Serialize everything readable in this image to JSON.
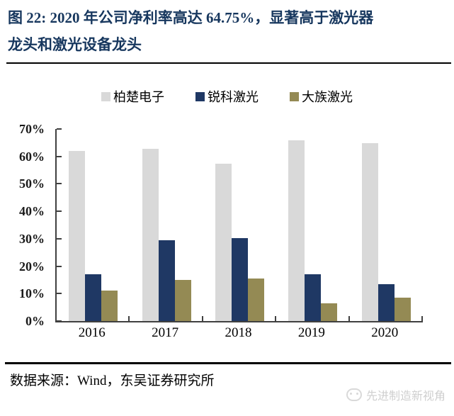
{
  "figure": {
    "title_line1": "图 22: 2020 年公司净利率高达 64.75%，显著高于激光器",
    "title_line2": "龙头和激光设备龙头",
    "title_color": "#17375E",
    "source": "数据来源：Wind，东吴证券研究所",
    "watermark_text": "先进制造新视角"
  },
  "chart_data": {
    "type": "bar",
    "title": "2020 年公司净利率高达 64.75%，显著高于激光器龙头和激光设备龙头",
    "categories": [
      "2016",
      "2017",
      "2018",
      "2019",
      "2020"
    ],
    "series": [
      {
        "name": "柏楚电子",
        "color": "#D9D9D9",
        "values": [
          62.0,
          62.8,
          57.4,
          66.0,
          64.75
        ]
      },
      {
        "name": "锐科激光",
        "color": "#1F3864",
        "values": [
          17.0,
          29.5,
          30.2,
          17.0,
          13.5
        ]
      },
      {
        "name": "大族激光",
        "color": "#948A54",
        "values": [
          11.0,
          15.0,
          15.6,
          6.5,
          8.5
        ]
      }
    ],
    "xlabel": "",
    "ylabel": "",
    "ylim": [
      0,
      70
    ],
    "ytick_step": 10,
    "ytick_labels": [
      "0%",
      "10%",
      "20%",
      "30%",
      "40%",
      "50%",
      "60%",
      "70%"
    ],
    "unit": "percent",
    "legend_position": "top",
    "grid": false
  }
}
